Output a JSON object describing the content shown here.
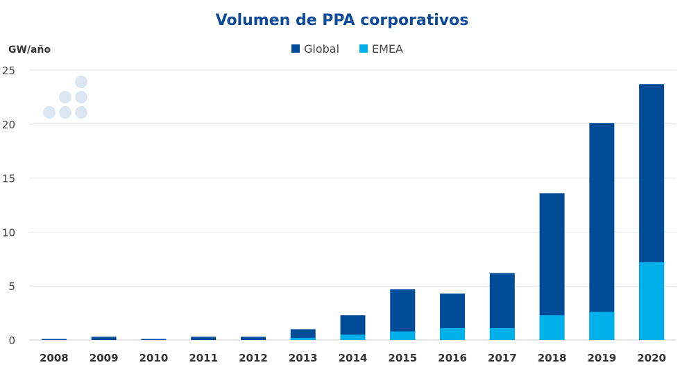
{
  "chart_data": {
    "type": "bar",
    "stacked": false,
    "overlay": true,
    "title": "Volumen de PPA corporativos",
    "ylabel": "GW/año",
    "xlabel": "",
    "ylim": [
      0,
      25
    ],
    "yticks": [
      0,
      5,
      10,
      15,
      20,
      25
    ],
    "grid": true,
    "legend_position": "top-center",
    "categories": [
      "2008",
      "2009",
      "2010",
      "2011",
      "2012",
      "2013",
      "2014",
      "2015",
      "2016",
      "2017",
      "2018",
      "2019",
      "2020"
    ],
    "series": [
      {
        "name": "Global",
        "color": "#004C99",
        "values": [
          0.1,
          0.3,
          0.1,
          0.3,
          0.3,
          1.0,
          2.3,
          4.7,
          4.3,
          6.2,
          13.6,
          20.1,
          23.7
        ]
      },
      {
        "name": "EMEA",
        "color": "#00B0EB",
        "values": [
          0,
          0,
          0,
          0,
          0,
          0.2,
          0.5,
          0.8,
          1.1,
          1.1,
          2.3,
          2.6,
          7.2
        ]
      }
    ]
  }
}
